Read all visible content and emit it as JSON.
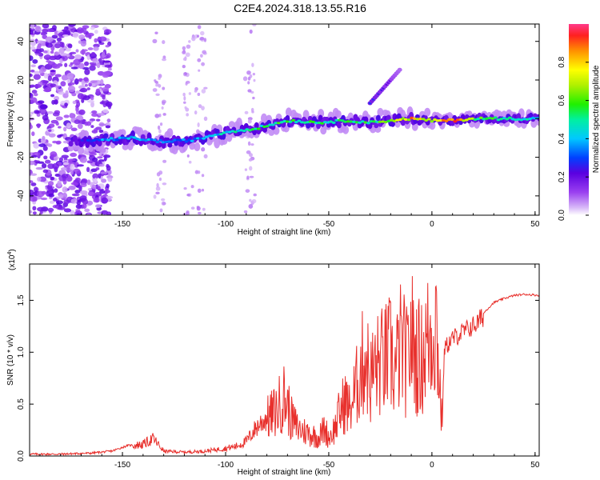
{
  "title": "C2E4.2024.318.13.55.R16",
  "chart_data": [
    {
      "type": "heatmap",
      "xlabel": "Height of straight line (km)",
      "ylabel": "Frequency (Hz)",
      "xlim": [
        -195,
        52
      ],
      "ylim": [
        -50,
        49
      ],
      "x_ticks": [
        "-150",
        "-100",
        "-50",
        "0",
        "50"
      ],
      "x_tick_values": [
        -150,
        -100,
        -50,
        0,
        50
      ],
      "y_ticks": [
        "40",
        "20",
        "0",
        "-20",
        "-40"
      ],
      "y_tick_values": [
        40,
        20,
        0,
        -20,
        -40
      ],
      "colorbar": {
        "label": "Normalized spectral amplitude",
        "range": [
          0,
          1
        ],
        "ticks": [
          "0.0",
          "0.2",
          "0.4",
          "0.6",
          "0.8"
        ],
        "tick_values": [
          0.0,
          0.2,
          0.4,
          0.6,
          0.8
        ]
      },
      "ridge": {
        "x": [
          -175,
          -160,
          -145,
          -130,
          -115,
          -100,
          -85,
          -70,
          -55,
          -40,
          -30,
          -20,
          -10,
          0,
          10,
          20,
          30,
          40,
          52
        ],
        "y": [
          -12,
          -11,
          -10,
          -12,
          -11,
          -7,
          -5,
          -1,
          -2,
          -1,
          -2,
          -1,
          0,
          -1,
          -1,
          0,
          0,
          0,
          0
        ],
        "amplitude": [
          0.2,
          0.35,
          0.4,
          0.35,
          0.35,
          0.45,
          0.5,
          0.55,
          0.5,
          0.55,
          0.55,
          0.6,
          0.8,
          0.7,
          0.95,
          0.6,
          0.55,
          0.5,
          0.45
        ]
      },
      "branch": {
        "x": [
          -30,
          -25,
          -20,
          -15
        ],
        "y": [
          8,
          14,
          20,
          26
        ],
        "amplitude": [
          0.3,
          0.25,
          0.2,
          0.15
        ]
      },
      "noise_region_x": [
        -195,
        -160
      ]
    },
    {
      "type": "line",
      "xlabel": "Height of straight line (km)",
      "ylabel": "SNR (10 * v/v)",
      "multiplier": "(x10",
      "multiplier_exp": "4",
      "multiplier_close": ")",
      "xlim": [
        -195,
        52
      ],
      "ylim": [
        0,
        1.85
      ],
      "x_ticks": [
        "-150",
        "-100",
        "-50",
        "0",
        "50"
      ],
      "x_tick_values": [
        -150,
        -100,
        -50,
        0,
        50
      ],
      "y_ticks": [
        "0.0",
        "0.5",
        "1.0",
        "1.5"
      ],
      "y_tick_values": [
        0.0,
        0.5,
        1.0,
        1.5
      ],
      "color": "#e8302c",
      "series": [
        {
          "x": [
            -195,
            -180,
            -165,
            -155,
            -148,
            -140,
            -135,
            -130,
            -120,
            -110,
            -100,
            -95,
            -90,
            -85,
            -80,
            -75,
            -72,
            -70,
            -68,
            -65,
            -60,
            -55,
            -52,
            -50,
            -47,
            -45,
            -42,
            -40,
            -37,
            -35,
            -32,
            -30,
            -28,
            -25,
            -22,
            -20,
            -18,
            -15,
            -12,
            -10,
            -8,
            -5,
            -3,
            0,
            2,
            4,
            5,
            6,
            8,
            10,
            14,
            18,
            22,
            26,
            30,
            35,
            40,
            45,
            52
          ],
          "y": [
            0.02,
            0.02,
            0.03,
            0.05,
            0.1,
            0.12,
            0.18,
            0.05,
            0.04,
            0.05,
            0.08,
            0.1,
            0.15,
            0.3,
            0.4,
            0.5,
            0.65,
            0.55,
            0.4,
            0.3,
            0.25,
            0.2,
            0.3,
            0.2,
            0.3,
            0.45,
            0.6,
            0.5,
            0.7,
            0.9,
            1.1,
            0.8,
            0.95,
            1.0,
            1.05,
            1.1,
            0.9,
            1.2,
            1.0,
            1.3,
            1.1,
            1.05,
            1.2,
            1.35,
            1.5,
            0.7,
            0.3,
            1.05,
            1.1,
            1.15,
            1.2,
            1.25,
            1.3,
            1.4,
            1.48,
            1.52,
            1.55,
            1.56,
            1.55
          ]
        }
      ]
    }
  ]
}
